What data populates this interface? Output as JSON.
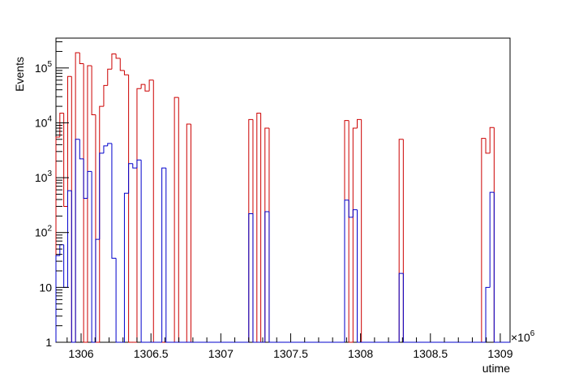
{
  "chart_data": {
    "type": "histogram",
    "ylabel": "Events",
    "xlabel": "utime",
    "x_multiplier": "×10",
    "x_multiplier_exp": "6",
    "xlim": [
      1305.82,
      1309.07
    ],
    "ylim": [
      1,
      350000
    ],
    "yscale": "log",
    "grid": false,
    "x_ticks": [
      {
        "value": 1306,
        "label": "1306"
      },
      {
        "value": 1306.5,
        "label": "1306.5"
      },
      {
        "value": 1307,
        "label": "1307"
      },
      {
        "value": 1307.5,
        "label": "1307.5"
      },
      {
        "value": 1308,
        "label": "1308"
      },
      {
        "value": 1308.5,
        "label": "1308.5"
      },
      {
        "value": 1309,
        "label": "1309"
      }
    ],
    "y_ticks": [
      {
        "value": 1,
        "label": "1"
      },
      {
        "value": 10,
        "label": "10"
      },
      {
        "value": 100,
        "label": "10",
        "sup": "2"
      },
      {
        "value": 1000,
        "label": "10",
        "sup": "3"
      },
      {
        "value": 10000,
        "label": "10",
        "sup": "4"
      },
      {
        "value": 100000,
        "label": "10",
        "sup": "5"
      }
    ],
    "series": [
      {
        "color": "#cc0000",
        "bins": [
          [
            1305.82,
            1305.848,
            5500
          ],
          [
            1305.848,
            1305.876,
            15000
          ],
          [
            1305.876,
            1305.904,
            300
          ],
          [
            1305.904,
            1305.932,
            70000
          ],
          [
            1305.932,
            1305.96,
            1
          ],
          [
            1305.96,
            1305.99,
            190000
          ],
          [
            1305.99,
            1306.018,
            120000
          ],
          [
            1306.018,
            1306.046,
            1
          ],
          [
            1306.046,
            1306.076,
            110000
          ],
          [
            1306.076,
            1306.104,
            14000
          ],
          [
            1306.104,
            1306.132,
            1
          ],
          [
            1306.132,
            1306.162,
            20000
          ],
          [
            1306.162,
            1306.19,
            48000
          ],
          [
            1306.19,
            1306.22,
            95000
          ],
          [
            1306.22,
            1306.25,
            180000
          ],
          [
            1306.25,
            1306.28,
            150000
          ],
          [
            1306.28,
            1306.31,
            90000
          ],
          [
            1306.31,
            1306.34,
            75000
          ],
          [
            1306.34,
            1306.37,
            1
          ],
          [
            1306.37,
            1306.4,
            1
          ],
          [
            1306.4,
            1306.43,
            42000
          ],
          [
            1306.43,
            1306.458,
            50000
          ],
          [
            1306.458,
            1306.488,
            38000
          ],
          [
            1306.488,
            1306.518,
            60000
          ],
          [
            1306.518,
            1306.548,
            1
          ],
          [
            1306.548,
            1306.578,
            1
          ],
          [
            1306.578,
            1306.608,
            1
          ],
          [
            1306.608,
            1306.638,
            1
          ],
          [
            1306.638,
            1306.668,
            1
          ],
          [
            1306.668,
            1306.698,
            29000
          ],
          [
            1306.698,
            1306.728,
            1
          ],
          [
            1306.728,
            1306.756,
            1
          ],
          [
            1306.756,
            1306.786,
            9500
          ],
          [
            1306.786,
            1306.816,
            1
          ],
          [
            1306.816,
            1307.2,
            1
          ],
          [
            1307.2,
            1307.23,
            11500
          ],
          [
            1307.23,
            1307.258,
            1
          ],
          [
            1307.258,
            1307.286,
            15000
          ],
          [
            1307.286,
            1307.316,
            1
          ],
          [
            1307.316,
            1307.346,
            8000
          ],
          [
            1307.346,
            1307.886,
            1
          ],
          [
            1307.886,
            1307.916,
            11000
          ],
          [
            1307.916,
            1307.946,
            1
          ],
          [
            1307.946,
            1307.976,
            8000
          ],
          [
            1307.976,
            1308.006,
            11500
          ],
          [
            1308.006,
            1308.276,
            1
          ],
          [
            1308.276,
            1308.306,
            5000
          ],
          [
            1308.306,
            1308.866,
            1
          ],
          [
            1308.866,
            1308.896,
            5200
          ],
          [
            1308.896,
            1308.926,
            2800
          ],
          [
            1308.926,
            1308.956,
            8200
          ],
          [
            1308.956,
            1309.07,
            1
          ]
        ]
      },
      {
        "color": "#0000cc",
        "bins": [
          [
            1305.82,
            1305.848,
            38
          ],
          [
            1305.848,
            1305.876,
            60
          ],
          [
            1305.876,
            1305.904,
            10
          ],
          [
            1305.904,
            1305.932,
            580
          ],
          [
            1305.932,
            1305.96,
            1
          ],
          [
            1305.96,
            1305.99,
            5000
          ],
          [
            1305.99,
            1306.018,
            2200
          ],
          [
            1306.018,
            1306.046,
            420
          ],
          [
            1306.046,
            1306.076,
            1300
          ],
          [
            1306.076,
            1306.104,
            1
          ],
          [
            1306.104,
            1306.132,
            75
          ],
          [
            1306.132,
            1306.162,
            2800
          ],
          [
            1306.162,
            1306.19,
            3800
          ],
          [
            1306.19,
            1306.22,
            4200
          ],
          [
            1306.22,
            1306.25,
            34
          ],
          [
            1306.25,
            1306.28,
            1
          ],
          [
            1306.28,
            1306.31,
            1
          ],
          [
            1306.31,
            1306.34,
            520
          ],
          [
            1306.34,
            1306.37,
            1800
          ],
          [
            1306.37,
            1306.4,
            1500
          ],
          [
            1306.4,
            1306.43,
            2100
          ],
          [
            1306.43,
            1306.458,
            1
          ],
          [
            1306.458,
            1306.488,
            1
          ],
          [
            1306.488,
            1306.518,
            1
          ],
          [
            1306.518,
            1306.548,
            1
          ],
          [
            1306.548,
            1306.578,
            1
          ],
          [
            1306.578,
            1306.608,
            1500
          ],
          [
            1306.608,
            1306.638,
            1
          ],
          [
            1306.638,
            1307.2,
            1
          ],
          [
            1307.2,
            1307.23,
            220
          ],
          [
            1307.23,
            1307.258,
            1
          ],
          [
            1307.258,
            1307.286,
            1
          ],
          [
            1307.286,
            1307.316,
            1
          ],
          [
            1307.316,
            1307.346,
            240
          ],
          [
            1307.346,
            1307.886,
            1
          ],
          [
            1307.886,
            1307.916,
            390
          ],
          [
            1307.916,
            1307.946,
            190
          ],
          [
            1307.946,
            1307.976,
            260
          ],
          [
            1307.976,
            1308.276,
            1
          ],
          [
            1308.276,
            1308.306,
            18
          ],
          [
            1308.306,
            1308.896,
            1
          ],
          [
            1308.896,
            1308.926,
            10
          ],
          [
            1308.926,
            1308.956,
            540
          ],
          [
            1308.956,
            1309.07,
            1
          ]
        ]
      }
    ]
  }
}
